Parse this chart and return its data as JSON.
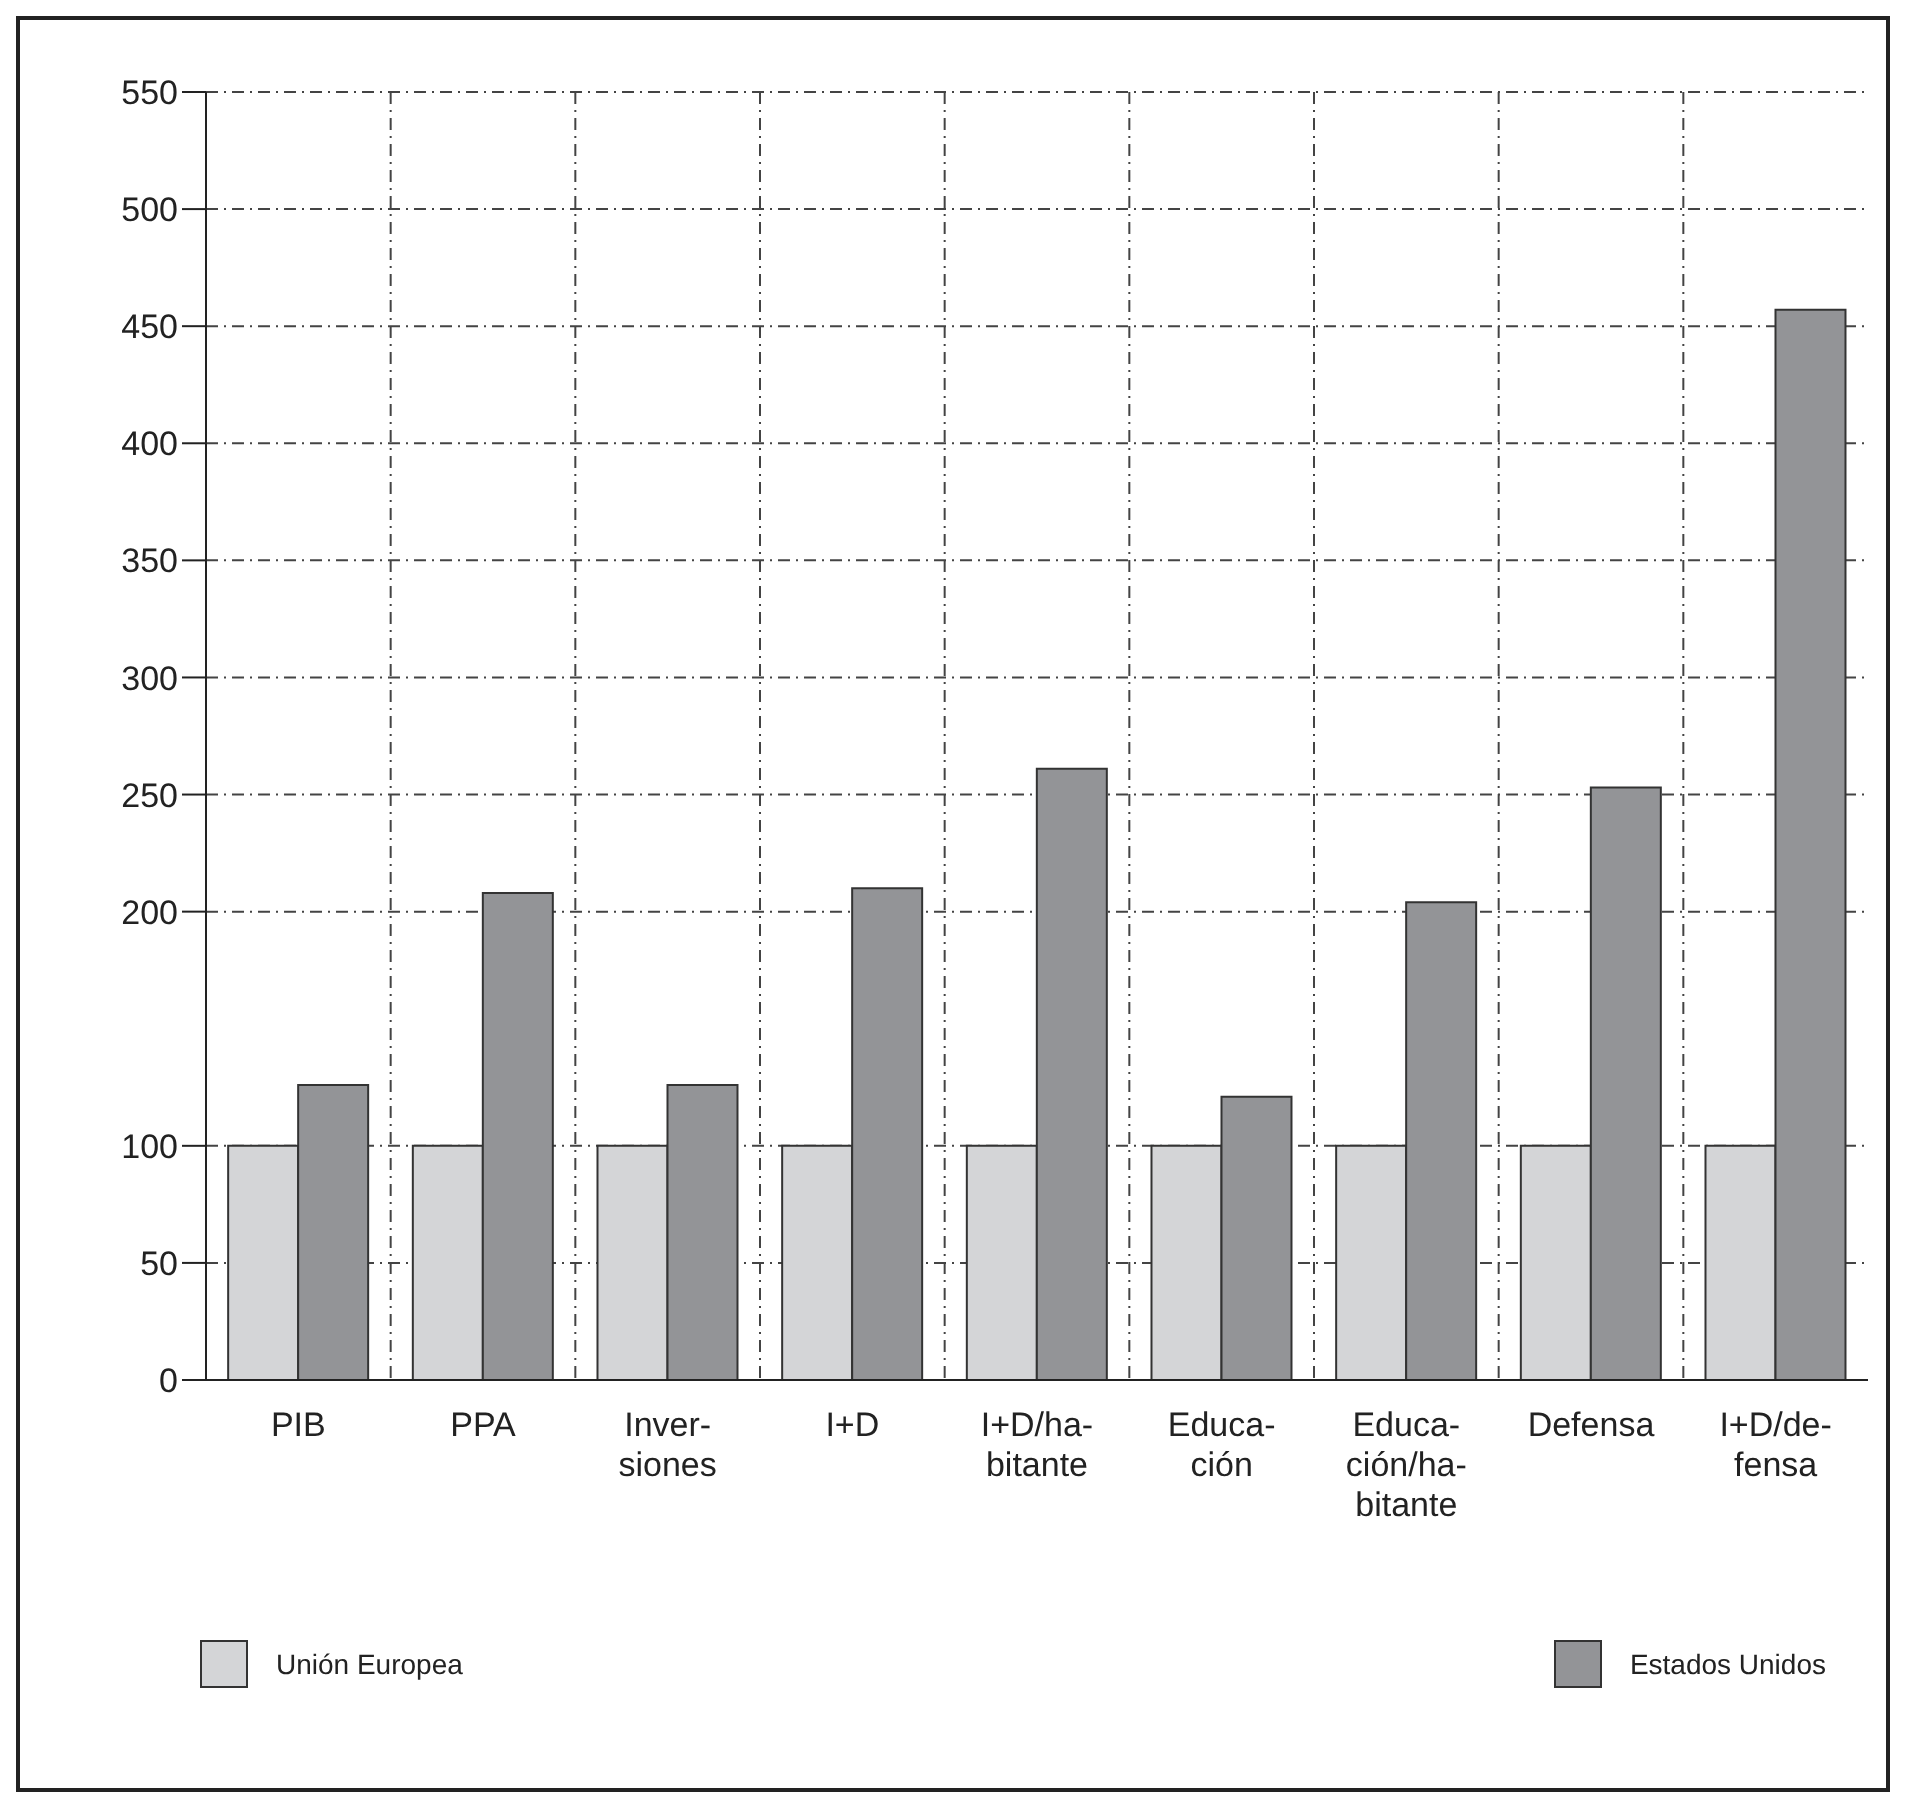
{
  "chart_data": {
    "type": "bar",
    "categories": [
      "PIB",
      "PPA",
      "Inver-\nsiones",
      "I+D",
      "I+D/ha-\nbitante",
      "Educa-\nción",
      "Educa-\nción/ha-\nbitante",
      "Defensa",
      "I+D/de-\nfensa"
    ],
    "series": [
      {
        "name": "Unión Europea",
        "color": "#d4d5d7",
        "values": [
          100,
          100,
          100,
          100,
          100,
          100,
          100,
          100,
          100
        ]
      },
      {
        "name": "Estados Unidos",
        "color": "#939497",
        "values": [
          126,
          208,
          126,
          210,
          261,
          121,
          204,
          253,
          457
        ]
      }
    ],
    "ylim": [
      0,
      550
    ],
    "yticks": [
      0,
      50,
      100,
      200,
      250,
      300,
      350,
      400,
      450,
      500,
      550
    ],
    "grid": true,
    "legend": "bottom"
  }
}
